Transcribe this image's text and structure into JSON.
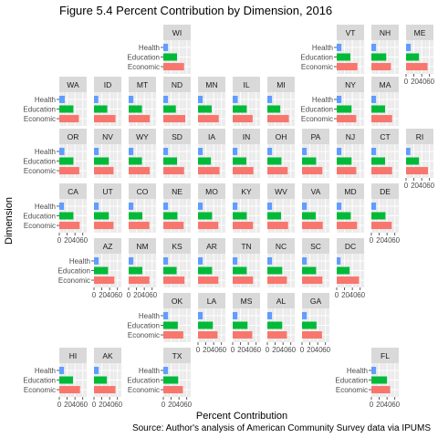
{
  "chart_data": {
    "type": "bar",
    "title": "Figure 5.4 Percent Contribution by Dimension, 2016",
    "xlabel": "Percent Contribution",
    "ylabel": "Dimension",
    "caption": "Source: Author's analysis of American Community Survey data via IPUMS",
    "x_ticks": [
      "0",
      "20",
      "40",
      "60"
    ],
    "xlim": [
      0,
      70
    ],
    "categories": [
      "Health",
      "Education",
      "Economic"
    ],
    "colors": {
      "Health": "#619CFF",
      "Education": "#00BA38",
      "Economic": "#F8766D"
    },
    "grid": true,
    "orientation": "horizontal",
    "facets": [
      {
        "state": "WI",
        "values": [
          12,
          35,
          53
        ]
      },
      {
        "state": "VT",
        "values": [
          12,
          35,
          53
        ]
      },
      {
        "state": "NH",
        "values": [
          12,
          38,
          50
        ]
      },
      {
        "state": "ME",
        "values": [
          12,
          33,
          55
        ]
      },
      {
        "state": "WA",
        "values": [
          14,
          36,
          50
        ]
      },
      {
        "state": "ID",
        "values": [
          11,
          34,
          55
        ]
      },
      {
        "state": "MT",
        "values": [
          12,
          34,
          54
        ]
      },
      {
        "state": "ND",
        "values": [
          12,
          32,
          56
        ]
      },
      {
        "state": "MN",
        "values": [
          12,
          35,
          53
        ]
      },
      {
        "state": "IL",
        "values": [
          13,
          36,
          51
        ]
      },
      {
        "state": "MI",
        "values": [
          12,
          33,
          55
        ]
      },
      {
        "state": "NY",
        "values": [
          12,
          38,
          50
        ]
      },
      {
        "state": "MA",
        "values": [
          12,
          35,
          53
        ]
      },
      {
        "state": "OR",
        "values": [
          13,
          36,
          51
        ]
      },
      {
        "state": "NV",
        "values": [
          12,
          38,
          50
        ]
      },
      {
        "state": "WY",
        "values": [
          12,
          34,
          54
        ]
      },
      {
        "state": "SD",
        "values": [
          12,
          35,
          53
        ]
      },
      {
        "state": "IA",
        "values": [
          12,
          33,
          55
        ]
      },
      {
        "state": "IN",
        "values": [
          12,
          35,
          53
        ]
      },
      {
        "state": "OH",
        "values": [
          12,
          36,
          52
        ]
      },
      {
        "state": "PA",
        "values": [
          12,
          36,
          52
        ]
      },
      {
        "state": "NJ",
        "values": [
          12,
          38,
          50
        ]
      },
      {
        "state": "CT",
        "values": [
          12,
          35,
          53
        ]
      },
      {
        "state": "RI",
        "values": [
          11,
          33,
          56
        ]
      },
      {
        "state": "CA",
        "values": [
          12,
          36,
          52
        ]
      },
      {
        "state": "UT",
        "values": [
          12,
          38,
          50
        ]
      },
      {
        "state": "CO",
        "values": [
          12,
          35,
          53
        ]
      },
      {
        "state": "NE",
        "values": [
          12,
          36,
          52
        ]
      },
      {
        "state": "MO",
        "values": [
          12,
          36,
          52
        ]
      },
      {
        "state": "KY",
        "values": [
          12,
          36,
          52
        ]
      },
      {
        "state": "WV",
        "values": [
          12,
          35,
          53
        ]
      },
      {
        "state": "VA",
        "values": [
          12,
          35,
          53
        ]
      },
      {
        "state": "MD",
        "values": [
          12,
          36,
          52
        ]
      },
      {
        "state": "DE",
        "values": [
          12,
          36,
          52
        ]
      },
      {
        "state": "AZ",
        "values": [
          12,
          36,
          52
        ]
      },
      {
        "state": "NM",
        "values": [
          12,
          35,
          53
        ]
      },
      {
        "state": "KS",
        "values": [
          12,
          34,
          54
        ]
      },
      {
        "state": "AR",
        "values": [
          12,
          36,
          52
        ]
      },
      {
        "state": "TN",
        "values": [
          12,
          36,
          52
        ]
      },
      {
        "state": "NC",
        "values": [
          12,
          38,
          50
        ]
      },
      {
        "state": "SC",
        "values": [
          12,
          36,
          52
        ]
      },
      {
        "state": "DC",
        "values": [
          10,
          33,
          57
        ]
      },
      {
        "state": "OK",
        "values": [
          12,
          37,
          51
        ]
      },
      {
        "state": "LA",
        "values": [
          12,
          38,
          50
        ]
      },
      {
        "state": "MS",
        "values": [
          12,
          38,
          50
        ]
      },
      {
        "state": "AL",
        "values": [
          12,
          38,
          50
        ]
      },
      {
        "state": "GA",
        "values": [
          12,
          37,
          51
        ]
      },
      {
        "state": "HI",
        "values": [
          12,
          35,
          53
        ]
      },
      {
        "state": "AK",
        "values": [
          12,
          33,
          55
        ]
      },
      {
        "state": "TX",
        "values": [
          12,
          38,
          50
        ]
      },
      {
        "state": "FL",
        "values": [
          12,
          40,
          48
        ]
      }
    ]
  }
}
